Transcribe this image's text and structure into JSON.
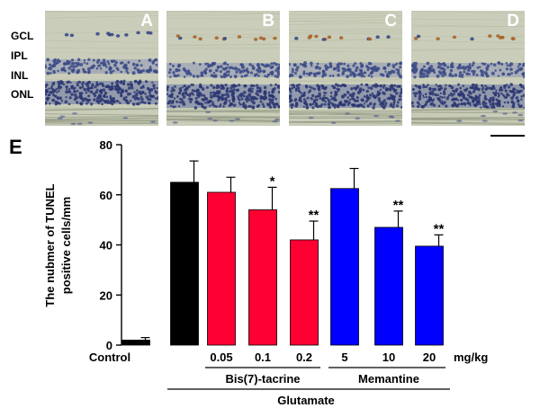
{
  "figure": {
    "layer_labels": [
      "GCL",
      "IPL",
      "INL",
      "ONL"
    ],
    "panels": [
      {
        "letter": "A",
        "tunel_positive": false
      },
      {
        "letter": "B",
        "tunel_positive": true
      },
      {
        "letter": "C",
        "tunel_positive": true
      },
      {
        "letter": "D",
        "tunel_positive": true
      }
    ],
    "colors": {
      "tissue_bg": "#c9cdb9",
      "nuclei": "#3a4a86",
      "tunel": "#a8642a"
    }
  },
  "chart_data": {
    "type": "bar",
    "panel_letter": "E",
    "ylabel_lines": [
      "The nubmer of TUNEL",
      "positive cells/mm"
    ],
    "ylim": [
      0,
      80
    ],
    "yticks": [
      0,
      20,
      40,
      60,
      80
    ],
    "unit": "mg/kg",
    "categories": [
      "Control",
      "",
      "0.05",
      "0.1",
      "0.2",
      "5",
      "10",
      "20"
    ],
    "values": [
      2,
      65,
      61,
      54,
      42,
      62.5,
      47,
      39.5
    ],
    "errors": [
      1,
      8.5,
      6,
      9,
      7.5,
      8,
      6.5,
      4.5
    ],
    "significance": [
      "",
      "",
      "",
      "*",
      "**",
      "",
      "**",
      "**"
    ],
    "colors": [
      "#000000",
      "#000000",
      "#ff0033",
      "#ff0033",
      "#ff0033",
      "#0000ff",
      "#0000ff",
      "#0000ff"
    ],
    "groups": [
      {
        "label": "Bis(7)-tacrine"
      },
      {
        "label": "Memantine"
      }
    ],
    "outer_group": {
      "label": "Glutamate"
    }
  }
}
